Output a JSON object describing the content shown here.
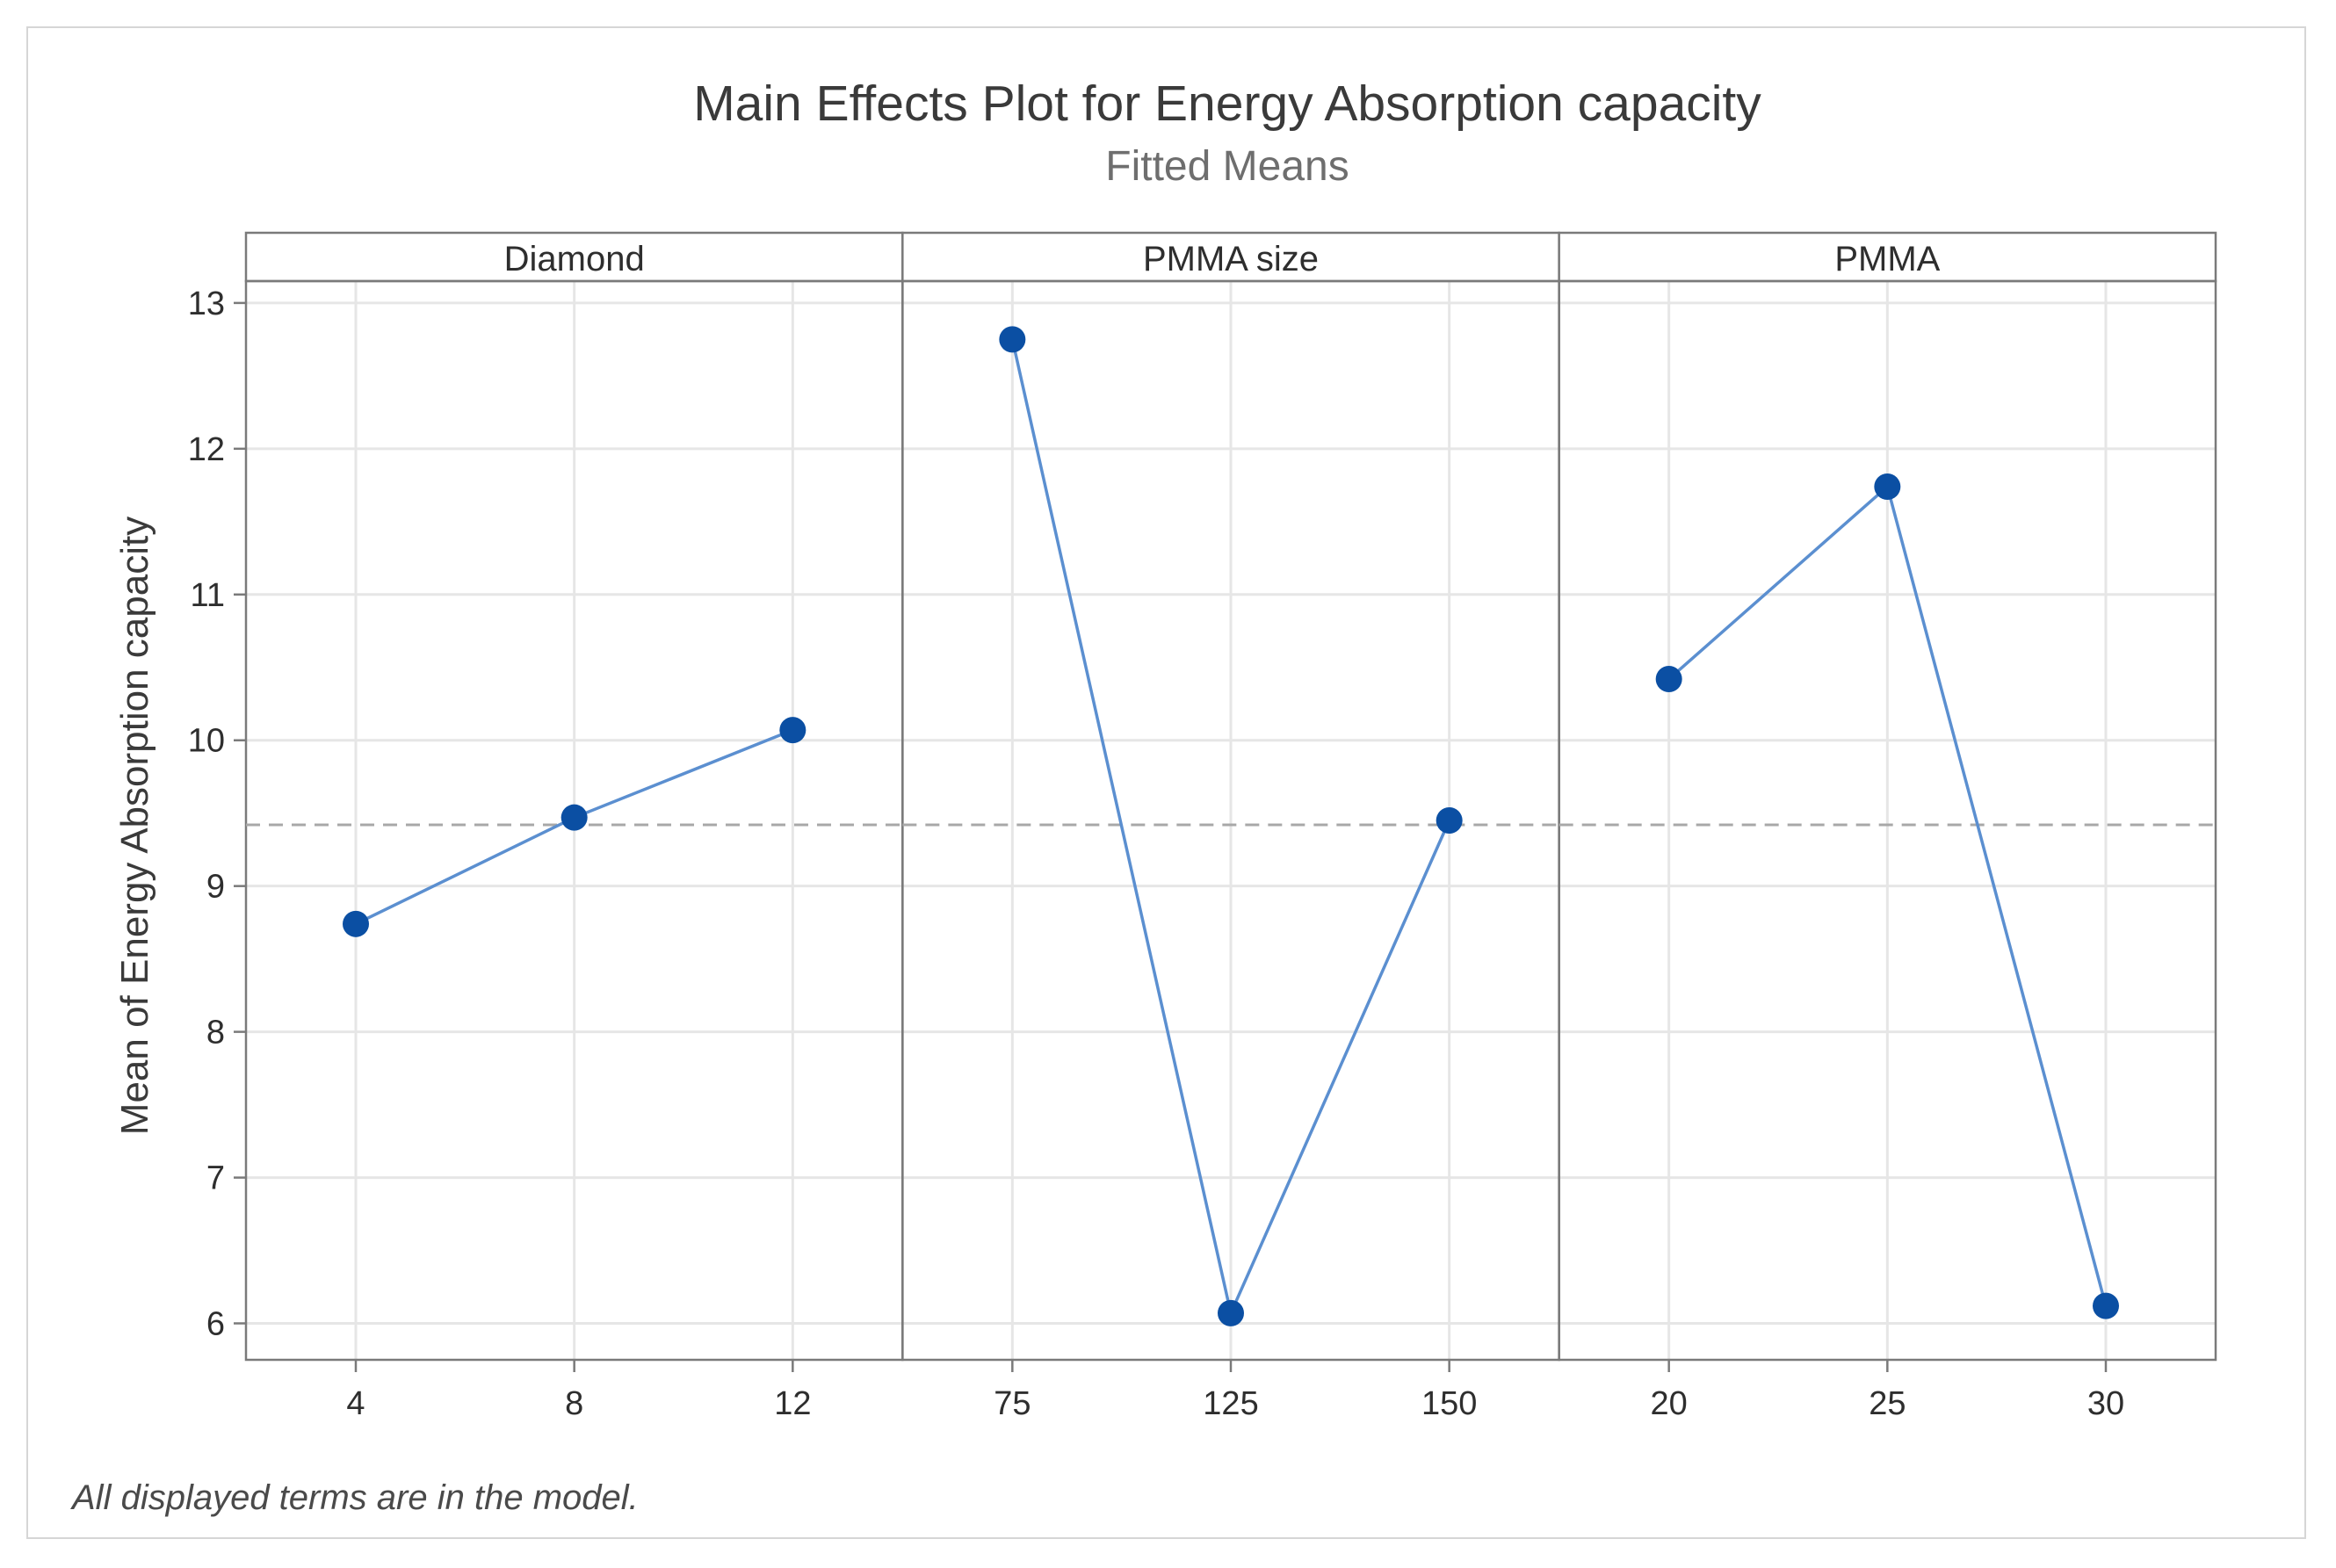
{
  "chart_data": {
    "type": "line",
    "title": "Main Effects Plot for Energy Absorption capacity",
    "subtitle": "Fitted Means",
    "ylabel": "Mean of Energy Absorption capacity",
    "ylim": [
      5.75,
      13.15
    ],
    "yticks": [
      "6",
      "7",
      "8",
      "9",
      "10",
      "11",
      "12",
      "13"
    ],
    "overall_mean": 9.42,
    "panels": [
      {
        "name": "Diamond",
        "categories": [
          "4",
          "8",
          "12"
        ],
        "values": [
          8.74,
          9.47,
          10.07
        ]
      },
      {
        "name": "PMMA size",
        "categories": [
          "75",
          "125",
          "150"
        ],
        "values": [
          12.75,
          6.07,
          9.45
        ]
      },
      {
        "name": "PMMA",
        "categories": [
          "20",
          "25",
          "30"
        ],
        "values": [
          10.42,
          11.74,
          6.12
        ]
      }
    ],
    "footnote": "All displayed terms are in the model.",
    "colors": {
      "line": "#5b8fd0",
      "marker": "#0b4fa3",
      "grid": "#e6e6e6",
      "reference": "#a8a8a8",
      "frame": "#7a7a7a"
    }
  }
}
